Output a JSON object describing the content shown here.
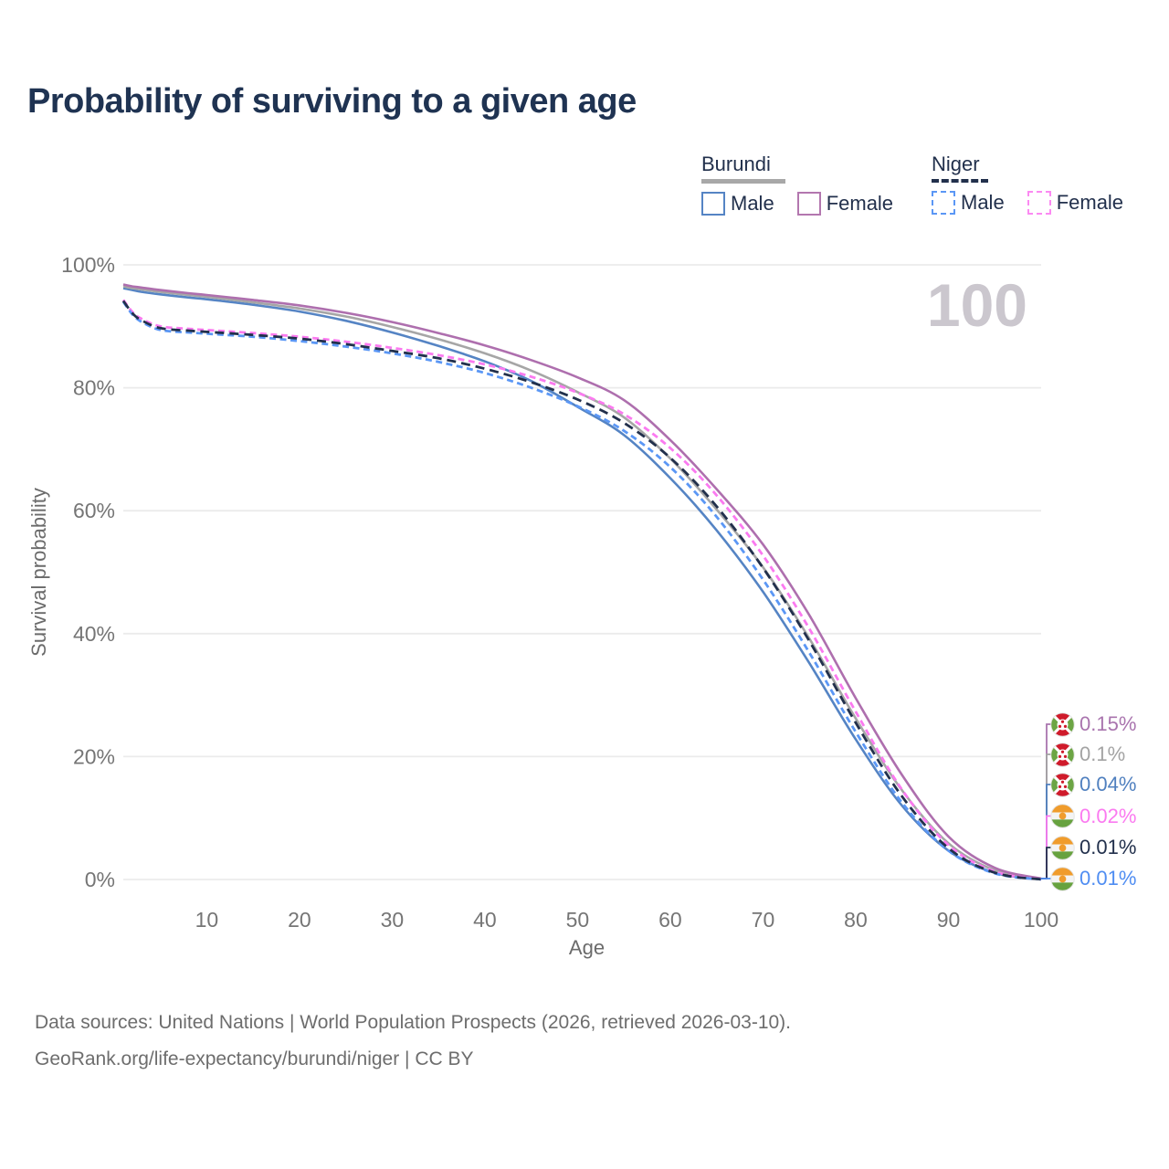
{
  "title": "Probability of surviving to a given age",
  "watermark_age": "100",
  "legend": {
    "groups": [
      {
        "label": "Burundi",
        "line_style": "solid",
        "swatch_color": "#a8a8a8",
        "items": [
          {
            "label": "Male",
            "color": "#5584c4",
            "dashed": false
          },
          {
            "label": "Female",
            "color": "#b377af",
            "dashed": false
          }
        ]
      },
      {
        "label": "Niger",
        "line_style": "dashed",
        "swatch_color": "#22304c",
        "items": [
          {
            "label": "Male",
            "color": "#5b97f5",
            "dashed": true
          },
          {
            "label": "Female",
            "color": "#fb8af2",
            "dashed": true
          }
        ]
      }
    ]
  },
  "chart_data": {
    "type": "line",
    "title": "Probability of surviving to a given age",
    "xlabel": "Age",
    "ylabel": "Survival probability",
    "xlim": [
      1,
      100
    ],
    "ylim": [
      0,
      100
    ],
    "grid": "horizontal",
    "x_tick_values": [
      10,
      20,
      30,
      40,
      50,
      60,
      70,
      80,
      90,
      100
    ],
    "x_tick_labels": [
      "10",
      "20",
      "30",
      "40",
      "50",
      "60",
      "70",
      "80",
      "90",
      "100"
    ],
    "y_tick_values": [
      0,
      20,
      40,
      60,
      80,
      100
    ],
    "y_tick_labels": [
      "0%",
      "20%",
      "40%",
      "60%",
      "80%",
      "100%"
    ],
    "x": [
      1,
      2,
      3,
      5,
      8,
      10,
      15,
      20,
      25,
      30,
      35,
      40,
      45,
      50,
      55,
      60,
      65,
      70,
      75,
      80,
      85,
      90,
      95,
      100
    ],
    "series": [
      {
        "id": "burundi-male",
        "name": "Burundi Male",
        "color": "#5584c4",
        "dashed": false,
        "values": [
          96.2,
          95.9,
          95.6,
          95.2,
          94.7,
          94.4,
          93.5,
          92.4,
          90.9,
          89.0,
          86.8,
          84.3,
          81.1,
          76.9,
          72.3,
          65.3,
          56.8,
          46.8,
          35.2,
          22.8,
          12.0,
          4.7,
          1.1,
          0.04
        ]
      },
      {
        "id": "burundi-average",
        "name": "Burundi (both sexes)",
        "color": "#a6a6a6",
        "dashed": false,
        "values": [
          96.5,
          96.2,
          96.0,
          95.6,
          95.1,
          94.8,
          93.9,
          92.9,
          91.6,
          89.9,
          87.9,
          85.6,
          82.8,
          79.3,
          75.2,
          68.5,
          60.2,
          50.8,
          39.2,
          26.2,
          14.5,
          5.9,
          1.5,
          0.1
        ]
      },
      {
        "id": "burundi-female",
        "name": "Burundi Female",
        "color": "#ae6fae",
        "dashed": false,
        "values": [
          96.8,
          96.5,
          96.3,
          95.9,
          95.4,
          95.1,
          94.3,
          93.4,
          92.2,
          90.7,
          88.9,
          86.9,
          84.5,
          81.7,
          78.0,
          71.5,
          63.5,
          54.5,
          43.0,
          29.5,
          17.0,
          7.0,
          1.9,
          0.15
        ]
      },
      {
        "id": "niger-female",
        "name": "Niger Female",
        "color": "#fb7af0",
        "dashed": true,
        "values": [
          94.3,
          92.3,
          91.2,
          90.0,
          89.6,
          89.4,
          88.9,
          88.3,
          87.5,
          86.5,
          85.3,
          83.8,
          81.8,
          79.2,
          75.7,
          70.2,
          62.5,
          52.7,
          40.8,
          27.3,
          14.6,
          5.6,
          1.3,
          0.02
        ]
      },
      {
        "id": "niger-male",
        "name": "Niger Male",
        "color": "#5b97f5",
        "dashed": true,
        "values": [
          94.0,
          91.9,
          90.7,
          89.4,
          89.0,
          88.8,
          88.3,
          87.6,
          86.7,
          85.6,
          84.2,
          82.4,
          80.0,
          77.0,
          73.0,
          67.1,
          59.0,
          48.8,
          36.9,
          24.0,
          12.5,
          4.7,
          1.0,
          0.01
        ]
      },
      {
        "id": "niger-average",
        "name": "Niger (both sexes)",
        "color": "#22304c",
        "dashed": true,
        "dash": "10 6",
        "values": [
          94.15,
          92.1,
          90.95,
          89.7,
          89.3,
          89.1,
          88.6,
          88.0,
          87.1,
          86.0,
          84.8,
          83.1,
          80.9,
          78.1,
          74.3,
          68.6,
          60.7,
          50.7,
          38.8,
          25.5,
          13.5,
          5.1,
          1.1,
          0.01
        ]
      }
    ],
    "end_labels": [
      {
        "text": "0.15%",
        "color": "#a974ae",
        "flag": "burundi",
        "series": "Burundi Female"
      },
      {
        "text": "0.1%",
        "color": "#a3a3a3",
        "flag": "burundi",
        "series": "Burundi (both sexes)"
      },
      {
        "text": "0.04%",
        "color": "#5080bf",
        "flag": "burundi",
        "series": "Burundi Male"
      },
      {
        "text": "0.02%",
        "color": "#fb7af0",
        "flag": "niger",
        "series": "Niger Female"
      },
      {
        "text": "0.01%",
        "color": "#22304c",
        "flag": "niger",
        "series": "Niger (both sexes)"
      },
      {
        "text": "0.01%",
        "color": "#4f8df2",
        "flag": "niger",
        "series": "Niger Male"
      }
    ],
    "legend_position": "top-right"
  },
  "footer": {
    "line1": "Data sources: United Nations | World Population Prospects (2026, retrieved 2026-03-10).",
    "line2": "GeoRank.org/life-expectancy/burundi/niger | CC BY"
  }
}
